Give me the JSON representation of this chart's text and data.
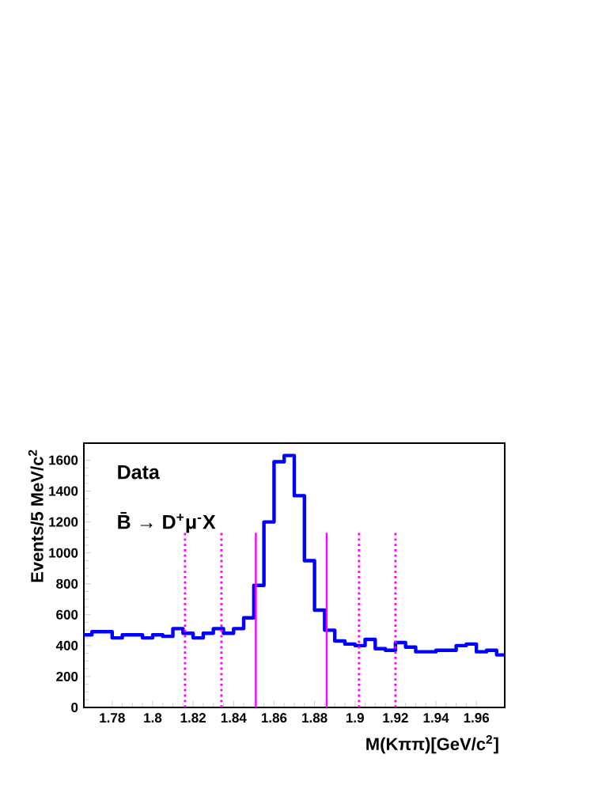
{
  "chart_data": {
    "type": "histogram",
    "xlabel": "M(Kππ)[GeV/c$^{2}$]",
    "ylabel": "Events/5 MeV/c$^{2}$",
    "annotations": [
      "Data",
      "B̄ → D$^{+}$μ$^{-}$X"
    ],
    "bins": [
      1.766,
      1.77,
      1.775,
      1.78,
      1.785,
      1.79,
      1.795,
      1.8,
      1.805,
      1.81,
      1.815,
      1.82,
      1.825,
      1.83,
      1.835,
      1.84,
      1.845,
      1.85,
      1.855,
      1.86,
      1.865,
      1.87,
      1.875,
      1.88,
      1.885,
      1.89,
      1.895,
      1.9,
      1.905,
      1.91,
      1.915,
      1.92,
      1.925,
      1.93,
      1.935,
      1.94,
      1.945,
      1.95,
      1.955,
      1.96,
      1.965,
      1.97,
      1.974
    ],
    "values": [
      470,
      490,
      490,
      450,
      470,
      470,
      450,
      470,
      460,
      510,
      480,
      450,
      480,
      510,
      480,
      510,
      580,
      790,
      1200,
      1590,
      1630,
      1370,
      950,
      630,
      500,
      430,
      410,
      400,
      440,
      380,
      370,
      420,
      390,
      360,
      360,
      370,
      370,
      400,
      410,
      360,
      370,
      340
    ],
    "color": "#0000ff",
    "xlim": [
      1.766,
      1.974
    ],
    "ylim": [
      0,
      1710
    ],
    "xticks": [
      1.78,
      1.8,
      1.82,
      1.84,
      1.86,
      1.88,
      1.9,
      1.92,
      1.94,
      1.96
    ],
    "yticks": [
      0,
      200,
      400,
      600,
      800,
      1000,
      1200,
      1400,
      1600
    ],
    "grid": false,
    "ref_lines": [
      {
        "axis": "x",
        "value": 1.816,
        "color": "#ff00ff",
        "line_style": "dotted"
      },
      {
        "axis": "x",
        "value": 1.834,
        "color": "#ff00ff",
        "line_style": "dotted"
      },
      {
        "axis": "x",
        "value": 1.851,
        "color": "#ff00ff",
        "line_style": "solid"
      },
      {
        "axis": "x",
        "value": 1.886,
        "color": "#ff00ff",
        "line_style": "solid"
      },
      {
        "axis": "x",
        "value": 1.902,
        "color": "#ff00ff",
        "line_style": "dotted"
      },
      {
        "axis": "x",
        "value": 1.92,
        "color": "#ff00ff",
        "line_style": "dotted"
      }
    ]
  }
}
